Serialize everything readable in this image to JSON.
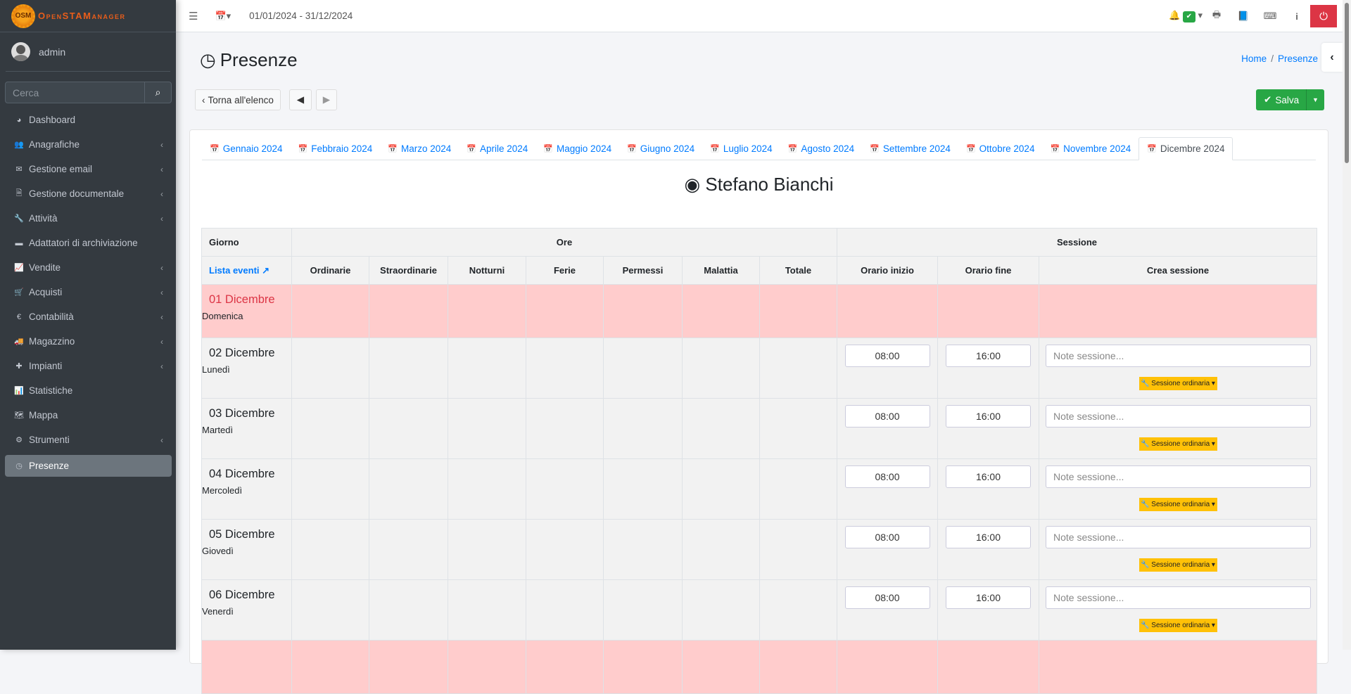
{
  "app": {
    "logo_text": "OpenSTAManager",
    "logo_badge": "OSM"
  },
  "user": {
    "name": "admin"
  },
  "search": {
    "placeholder": "Cerca"
  },
  "sidebar": {
    "items": [
      {
        "label": "Dashboard",
        "icon": "dashboard-icon",
        "glyph": "◕",
        "sub": false
      },
      {
        "label": "Anagrafiche",
        "icon": "users-icon",
        "glyph": "👥",
        "sub": true
      },
      {
        "label": "Gestione email",
        "icon": "envelope-icon",
        "glyph": "✉",
        "sub": true
      },
      {
        "label": "Gestione documentale",
        "icon": "file-icon",
        "glyph": "🗎",
        "sub": true
      },
      {
        "label": "Attività",
        "icon": "wrench-icon",
        "glyph": "🔧",
        "sub": true
      },
      {
        "label": "Adattatori di archiviazione",
        "icon": "folder-icon",
        "glyph": "▬",
        "sub": false
      },
      {
        "label": "Vendite",
        "icon": "line-chart-icon",
        "glyph": "📈",
        "sub": true
      },
      {
        "label": "Acquisti",
        "icon": "cart-icon",
        "glyph": "🛒",
        "sub": true
      },
      {
        "label": "Contabilità",
        "icon": "euro-icon",
        "glyph": "€",
        "sub": true
      },
      {
        "label": "Magazzino",
        "icon": "truck-icon",
        "glyph": "🚚",
        "sub": true
      },
      {
        "label": "Impianti",
        "icon": "puzzle-icon",
        "glyph": "✚",
        "sub": true
      },
      {
        "label": "Statistiche",
        "icon": "bar-chart-icon",
        "glyph": "📊",
        "sub": false
      },
      {
        "label": "Mappa",
        "icon": "map-icon",
        "glyph": "🗺",
        "sub": false
      },
      {
        "label": "Strumenti",
        "icon": "cog-icon",
        "glyph": "⚙",
        "sub": true
      },
      {
        "label": "Presenze",
        "icon": "clock-icon",
        "glyph": "◷",
        "sub": false,
        "active": true
      }
    ]
  },
  "topbar": {
    "date_range": "01/01/2024 - 31/12/2024"
  },
  "page": {
    "title": "Presenze",
    "breadcrumb": [
      "Home",
      "Presenze"
    ],
    "back_label": "Torna all'elenco",
    "save_label": "Salva"
  },
  "tabs": [
    "Gennaio 2024",
    "Febbraio 2024",
    "Marzo 2024",
    "Aprile 2024",
    "Maggio 2024",
    "Giugno 2024",
    "Luglio 2024",
    "Agosto 2024",
    "Settembre 2024",
    "Ottobre 2024",
    "Novembre 2024",
    "Dicembre 2024"
  ],
  "active_tab": "Dicembre 2024",
  "employee": "Stefano Bianchi",
  "table": {
    "group_headers": {
      "giorno": "Giorno",
      "ore": "Ore",
      "sessione": "Sessione"
    },
    "events_link": "Lista eventi",
    "columns": [
      "Ordinarie",
      "Straordinarie",
      "Notturni",
      "Ferie",
      "Permessi",
      "Malattia",
      "Totale",
      "Orario inizio",
      "Orario fine",
      "Crea sessione"
    ],
    "note_placeholder": "Note sessione...",
    "session_button": "Sessione ordinaria",
    "rows": [
      {
        "day": "01 Dicembre",
        "weekday": "Domenica",
        "holiday": true
      },
      {
        "day": "02 Dicembre",
        "weekday": "Lunedì",
        "holiday": false,
        "start": "08:00",
        "end": "16:00"
      },
      {
        "day": "03 Dicembre",
        "weekday": "Martedì",
        "holiday": false,
        "start": "08:00",
        "end": "16:00"
      },
      {
        "day": "04 Dicembre",
        "weekday": "Mercoledì",
        "holiday": false,
        "start": "08:00",
        "end": "16:00"
      },
      {
        "day": "05 Dicembre",
        "weekday": "Giovedì",
        "holiday": false,
        "start": "08:00",
        "end": "16:00"
      },
      {
        "day": "06 Dicembre",
        "weekday": "Venerdì",
        "holiday": false,
        "start": "08:00",
        "end": "16:00"
      },
      {
        "day": "",
        "weekday": "",
        "holiday": true
      }
    ]
  },
  "colors": {
    "sidebar": "#343a40",
    "primary": "#007bff",
    "success": "#28a745",
    "danger": "#dc3545",
    "warning": "#ffc107",
    "holiday_row": "#ffcccc"
  }
}
